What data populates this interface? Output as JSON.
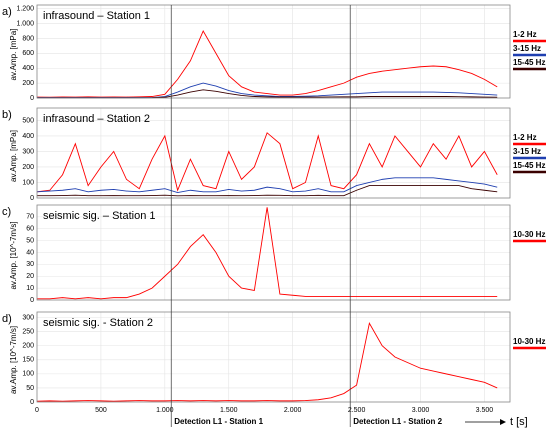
{
  "chart_data": [
    {
      "type": "line",
      "panel": "a)",
      "title": "infrasound – Station 1",
      "ylabel": "av.Amp. [mPa]",
      "x": [
        0,
        100,
        200,
        300,
        400,
        500,
        600,
        700,
        800,
        900,
        1000,
        1100,
        1200,
        1300,
        1400,
        1500,
        1600,
        1700,
        1800,
        1900,
        2000,
        2100,
        2200,
        2300,
        2400,
        2500,
        2600,
        2700,
        2800,
        2900,
        3000,
        3100,
        3200,
        3300,
        3400,
        3500,
        3600
      ],
      "xlim": [
        0,
        3700
      ],
      "xticks": [
        0,
        500,
        1000,
        1500,
        2000,
        2500,
        3000,
        3500
      ],
      "ylim": [
        0,
        1250
      ],
      "yticks": [
        0,
        200,
        400,
        600,
        800,
        {
          "value": 1000,
          "label": "1.000"
        },
        {
          "value": 1200,
          "label": "1.200"
        }
      ],
      "grid": true,
      "series": [
        {
          "name": "1-2 Hz",
          "color": "#ff0000",
          "values": [
            12,
            10,
            14,
            12,
            15,
            12,
            14,
            13,
            16,
            20,
            50,
            250,
            500,
            900,
            600,
            300,
            150,
            80,
            60,
            40,
            40,
            60,
            100,
            150,
            200,
            280,
            330,
            360,
            380,
            400,
            420,
            430,
            420,
            380,
            330,
            250,
            150
          ]
        },
        {
          "name": "3-15 Hz",
          "color": "#1f3fb0",
          "values": [
            5,
            5,
            5,
            5,
            5,
            5,
            5,
            5,
            5,
            6,
            20,
            80,
            150,
            200,
            160,
            100,
            60,
            40,
            30,
            20,
            20,
            25,
            30,
            40,
            50,
            60,
            70,
            80,
            80,
            80,
            80,
            80,
            75,
            70,
            60,
            50,
            40
          ]
        },
        {
          "name": "15-45 Hz",
          "color": "#3a0000",
          "values": [
            3,
            3,
            3,
            3,
            3,
            3,
            3,
            3,
            3,
            4,
            10,
            40,
            80,
            110,
            90,
            60,
            35,
            20,
            15,
            12,
            12,
            12,
            13,
            14,
            15,
            15,
            20,
            20,
            20,
            20,
            20,
            20,
            20,
            18,
            15,
            12,
            10
          ]
        }
      ]
    },
    {
      "type": "line",
      "panel": "b)",
      "title": "infrasound – Station 2",
      "ylabel": "av.Amp. [mPa]",
      "x": [
        0,
        100,
        200,
        300,
        400,
        500,
        600,
        700,
        800,
        900,
        1000,
        1100,
        1200,
        1300,
        1400,
        1500,
        1600,
        1700,
        1800,
        1900,
        2000,
        2100,
        2200,
        2300,
        2400,
        2500,
        2600,
        2700,
        2800,
        2900,
        3000,
        3100,
        3200,
        3300,
        3400,
        3500,
        3600
      ],
      "xlim": [
        0,
        3700
      ],
      "xticks": [
        0,
        500,
        1000,
        1500,
        2000,
        2500,
        3000,
        3500
      ],
      "ylim": [
        0,
        580
      ],
      "yticks": [
        0,
        100,
        200,
        300,
        400,
        500
      ],
      "grid": true,
      "series": [
        {
          "name": "1-2 Hz",
          "color": "#ff0000",
          "values": [
            40,
            50,
            150,
            350,
            80,
            200,
            300,
            120,
            60,
            250,
            400,
            50,
            250,
            80,
            60,
            300,
            120,
            200,
            420,
            350,
            60,
            100,
            400,
            80,
            60,
            150,
            350,
            200,
            400,
            300,
            200,
            350,
            250,
            400,
            200,
            300,
            150
          ]
        },
        {
          "name": "3-15 Hz",
          "color": "#1f3fb0",
          "values": [
            40,
            45,
            50,
            60,
            40,
            50,
            55,
            45,
            40,
            50,
            60,
            35,
            50,
            40,
            40,
            55,
            45,
            50,
            70,
            60,
            40,
            45,
            60,
            40,
            40,
            80,
            100,
            120,
            130,
            130,
            130,
            130,
            120,
            110,
            100,
            90,
            70
          ]
        },
        {
          "name": "15-45 Hz",
          "color": "#3a0000",
          "values": [
            15,
            15,
            16,
            18,
            15,
            15,
            16,
            15,
            15,
            16,
            18,
            14,
            16,
            15,
            15,
            16,
            15,
            16,
            18,
            17,
            15,
            15,
            17,
            15,
            15,
            50,
            80,
            80,
            80,
            80,
            80,
            80,
            80,
            80,
            60,
            50,
            40
          ]
        }
      ]
    },
    {
      "type": "line",
      "panel": "c)",
      "title": "seismic sig. – Station 1",
      "ylabel": "av.Amp. [10^-7m/s]",
      "x": [
        0,
        100,
        200,
        300,
        400,
        500,
        600,
        700,
        800,
        900,
        1000,
        1100,
        1200,
        1300,
        1400,
        1500,
        1600,
        1700,
        1800,
        1900,
        2000,
        2100,
        2200,
        2300,
        2400,
        2500,
        2600,
        2700,
        2800,
        2900,
        3000,
        3100,
        3200,
        3300,
        3400,
        3500,
        3600
      ],
      "xlim": [
        0,
        3700
      ],
      "xticks": [
        0,
        500,
        1000,
        1500,
        2000,
        2500,
        3000,
        3500
      ],
      "ylim": [
        0,
        80
      ],
      "yticks": [
        0,
        10,
        20,
        30,
        40,
        50,
        60,
        70
      ],
      "grid": true,
      "series": [
        {
          "name": "10-30 Hz",
          "color": "#ff0000",
          "values": [
            1,
            1,
            2,
            1,
            2,
            1,
            2,
            2,
            5,
            10,
            20,
            30,
            45,
            55,
            40,
            20,
            10,
            8,
            78,
            5,
            4,
            3,
            3,
            3,
            3,
            3,
            3,
            3,
            3,
            3,
            3,
            3,
            3,
            3,
            3,
            3,
            3
          ]
        }
      ]
    },
    {
      "type": "line",
      "panel": "d)",
      "title": "seismic sig. -  Station 2",
      "ylabel": "av.Amp. [10^-7m/s]",
      "x": [
        0,
        100,
        200,
        300,
        400,
        500,
        600,
        700,
        800,
        900,
        1000,
        1100,
        1200,
        1300,
        1400,
        1500,
        1600,
        1700,
        1800,
        1900,
        2000,
        2100,
        2200,
        2300,
        2400,
        2500,
        2600,
        2700,
        2800,
        2900,
        3000,
        3100,
        3200,
        3300,
        3400,
        3500,
        3600
      ],
      "xlim": [
        0,
        3700
      ],
      "xticks": [
        0,
        500,
        {
          "value": 1000,
          "label": "1.000"
        },
        {
          "value": 1500,
          "label": "1.500"
        },
        {
          "value": 2000,
          "label": "2.000"
        },
        {
          "value": 2500,
          "label": "2.500"
        },
        {
          "value": 3000,
          "label": "3.000"
        },
        {
          "value": 3500,
          "label": "3.500"
        }
      ],
      "ylim": [
        0,
        320
      ],
      "yticks": [
        0,
        50,
        100,
        150,
        200,
        250,
        300
      ],
      "grid": true,
      "xlabel": "t [s]",
      "annotations": [
        {
          "x": 1050,
          "text": "Detection L1 - Station 1"
        },
        {
          "x": 2450,
          "text": "Detection L1 -  Station 2"
        }
      ],
      "series": [
        {
          "name": "10-30 Hz",
          "color": "#ff0000",
          "values": [
            3,
            4,
            3,
            4,
            5,
            4,
            3,
            4,
            5,
            4,
            4,
            5,
            4,
            5,
            4,
            5,
            4,
            4,
            5,
            4,
            4,
            5,
            8,
            15,
            30,
            60,
            280,
            200,
            160,
            140,
            120,
            110,
            100,
            90,
            80,
            70,
            50
          ]
        }
      ]
    }
  ]
}
